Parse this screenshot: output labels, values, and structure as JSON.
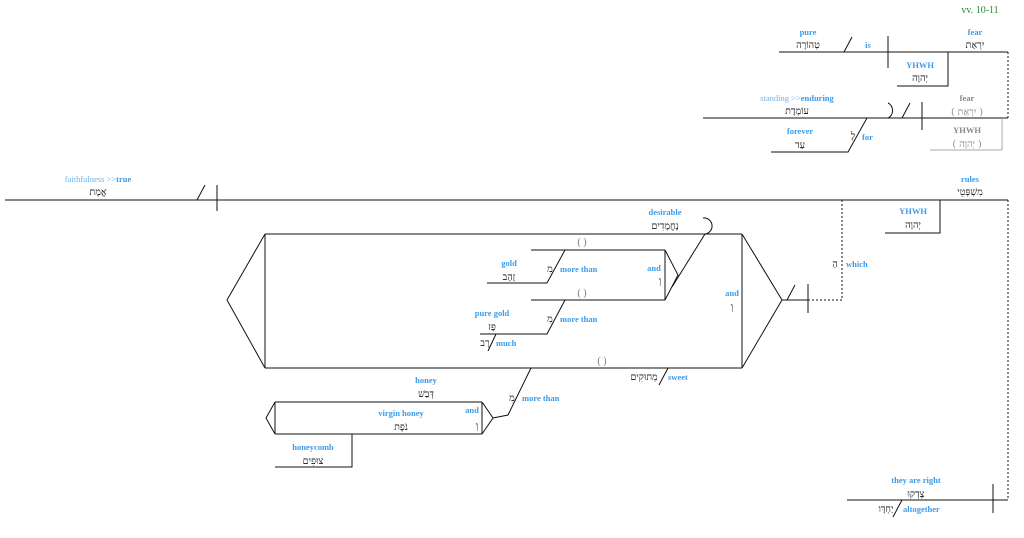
{
  "verse_ref": "vv. 10-11",
  "clause1": {
    "fear": {
      "en": "fear",
      "he": "יִרְאַת"
    },
    "is": "is",
    "pure": {
      "en": "pure",
      "he": "טְהוֹרָה"
    },
    "yhwh": {
      "en": "YHWH",
      "he": "יְהוָה"
    }
  },
  "clause2": {
    "fear": {
      "en": "fear",
      "he": "( יִרְאַת )"
    },
    "yhwh": {
      "en": "YHWH",
      "he": "( יְהוָה )"
    },
    "enduring": {
      "en_gloss": "standing >>",
      "en": "enduring",
      "he": "עוֹמֶדֶת"
    },
    "for": {
      "en": "for",
      "he": "לָ"
    },
    "forever": {
      "en": "forever",
      "he": "עַד"
    }
  },
  "clause3": {
    "rules": {
      "en": "rules",
      "he": "מִשְׁפְּטֵי"
    },
    "yhwh": {
      "en": "YHWH",
      "he": "יְהוָה"
    },
    "true": {
      "en_gloss": "faithfulness >>",
      "en": "true",
      "he": "אֱמֶת"
    },
    "which": {
      "en": "which",
      "he": "הַ"
    },
    "and_outer": {
      "en": "and",
      "he": "וְ"
    },
    "desirable": {
      "en": "desirable",
      "he": "נֶחֱמָדִים"
    },
    "and_inner": {
      "en": "and",
      "he": "וְ"
    },
    "empty": "( )",
    "gold": {
      "en": "gold",
      "he": "זָהָב",
      "prep_en": "more than",
      "prep_he": "מִ"
    },
    "pure_gold": {
      "en": "pure gold",
      "he": "פָּז",
      "prep_en": "more than",
      "prep_he": "מִ",
      "much_en": "much",
      "much_he": "רָב"
    },
    "sweet": {
      "en": "sweet",
      "he": "מְתוּקִים"
    },
    "honey_prep": {
      "en": "more than",
      "he": "מִ"
    },
    "honey": {
      "en": "honey",
      "he": "דְּבַשׁ"
    },
    "virgin_honey": {
      "en": "virgin honey",
      "he": "נֹפֶת"
    },
    "and_honey": {
      "en": "and",
      "he": "וְ"
    },
    "honeycomb": {
      "en": "honeycomb",
      "he": "צוּפִים"
    }
  },
  "clause4": {
    "right": {
      "en": "they are right",
      "he": "צָדְקוּ"
    },
    "altogether": {
      "en": "altogether",
      "he": "יַחְדָּו"
    }
  }
}
